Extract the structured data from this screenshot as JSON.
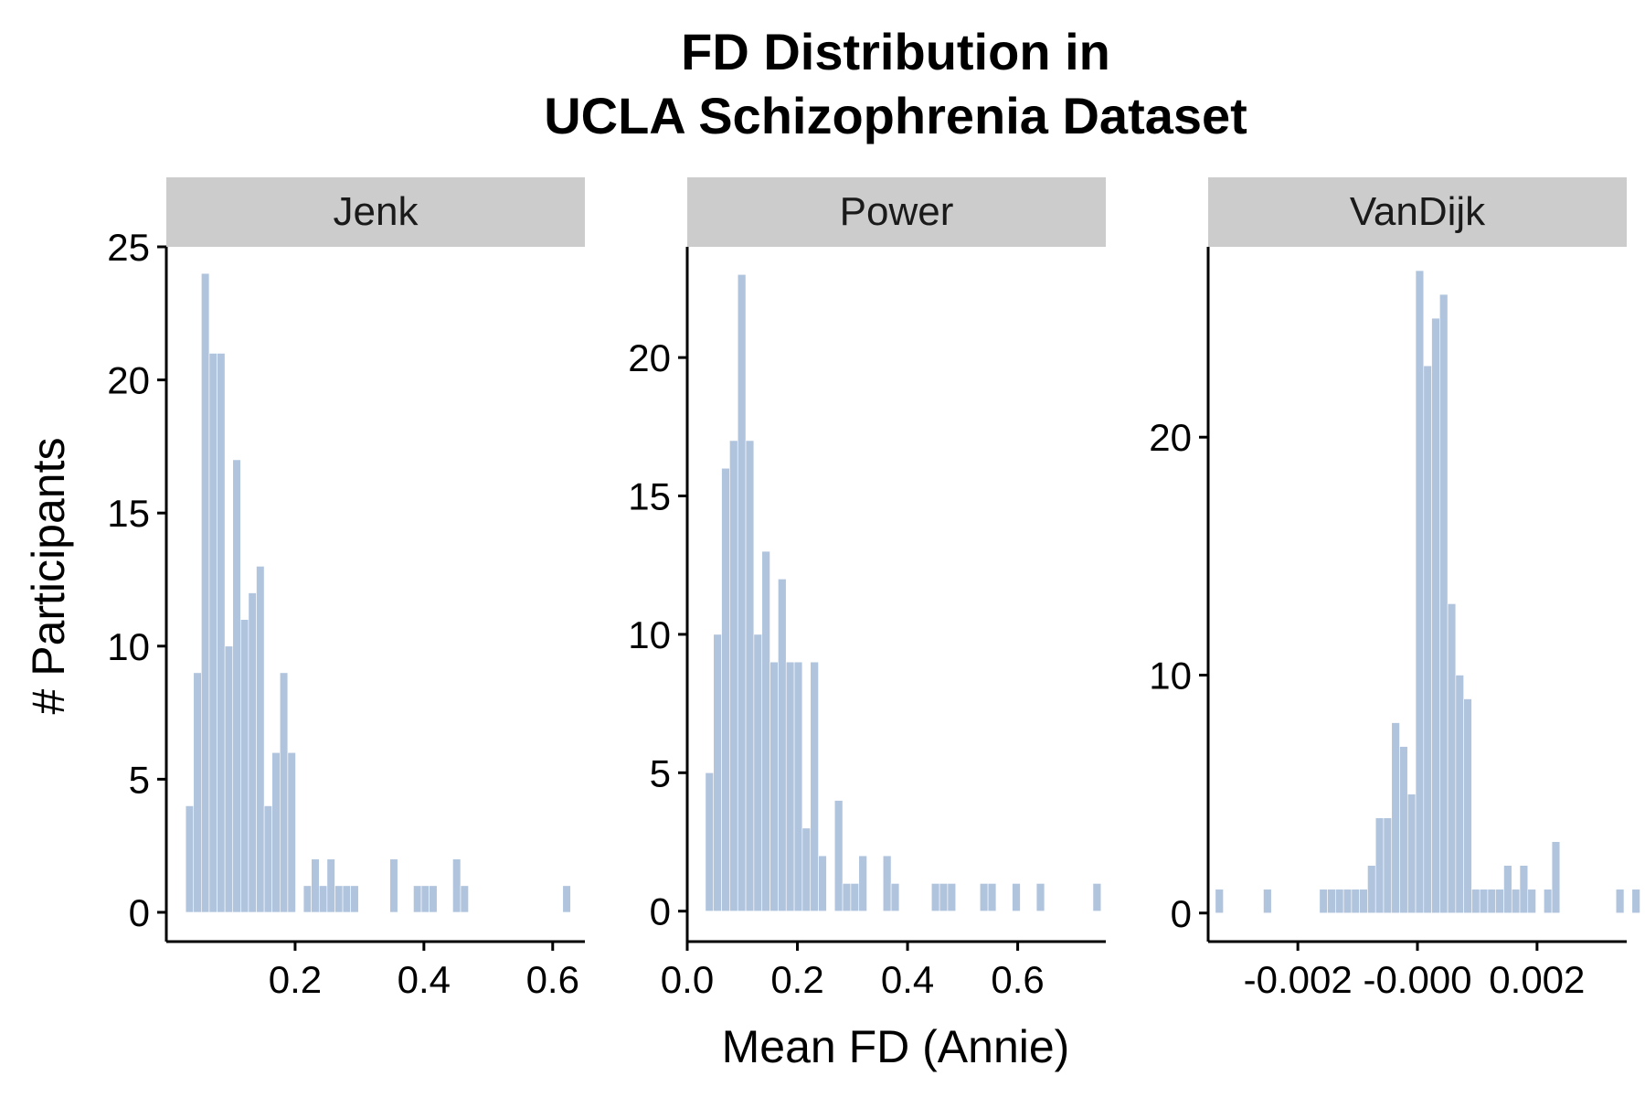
{
  "chart_data": {
    "type": "bar",
    "title_lines": [
      "FD Distribution in",
      "UCLA Schizophrenia Dataset"
    ],
    "xlabel": "Mean FD (Annie)",
    "ylabel": "# Participants",
    "bar_color": "#b0c4de",
    "strip_color": "#cccccc",
    "panels": [
      {
        "name": "Jenk",
        "xlim": [
          0.0,
          0.65
        ],
        "ylim": [
          -1.1,
          25.0
        ],
        "xticks": [
          0.2,
          0.4,
          0.6
        ],
        "xtick_labels": [
          "0.2",
          "0.4",
          "0.6"
        ],
        "yticks": [
          0,
          5,
          10,
          15,
          20,
          25
        ],
        "ytick_labels": [
          "0",
          "5",
          "10",
          "15",
          "20",
          "25"
        ],
        "bin_start": 0.03,
        "bin_width": 0.0122,
        "counts": [
          4,
          9,
          24,
          21,
          21,
          10,
          17,
          11,
          12,
          13,
          4,
          6,
          9,
          6,
          0,
          1,
          2,
          1,
          2,
          1,
          1,
          1,
          0,
          0,
          0,
          0,
          2,
          0,
          0,
          1,
          1,
          1,
          0,
          0,
          2,
          1,
          0,
          0,
          0,
          0,
          0,
          0,
          0,
          0,
          0,
          0,
          0,
          0,
          1
        ]
      },
      {
        "name": "Power",
        "xlim": [
          0.0,
          0.76
        ],
        "ylim": [
          -1.1,
          24.0
        ],
        "xticks": [
          0.0,
          0.2,
          0.4,
          0.6
        ],
        "xtick_labels": [
          "0.0",
          "0.2",
          "0.4",
          "0.6"
        ],
        "yticks": [
          0,
          5,
          10,
          15,
          20
        ],
        "ytick_labels": [
          "0",
          "5",
          "10",
          "15",
          "20"
        ],
        "bin_start": 0.033,
        "bin_width": 0.01466,
        "counts": [
          5,
          10,
          16,
          17,
          23,
          17,
          10,
          13,
          9,
          12,
          9,
          9,
          3,
          9,
          2,
          0,
          4,
          1,
          1,
          2,
          0,
          0,
          2,
          1,
          0,
          0,
          0,
          0,
          1,
          1,
          1,
          0,
          0,
          0,
          1,
          1,
          0,
          0,
          1,
          0,
          0,
          1,
          0,
          0,
          0,
          0,
          0,
          0,
          1
        ]
      },
      {
        "name": "VanDijk",
        "xlim": [
          -0.0035,
          0.0035
        ],
        "ylim": [
          -1.2,
          28.0
        ],
        "xticks": [
          -0.002,
          0.0,
          0.002
        ],
        "xtick_labels": [
          "-0.002",
          "-0.000",
          "0.002"
        ],
        "yticks": [
          0,
          10,
          20
        ],
        "ytick_labels": [
          "0",
          "10",
          "20"
        ],
        "bin_start": -0.00338,
        "bin_width": 0.000134,
        "counts": [
          1,
          0,
          0,
          0,
          0,
          0,
          1,
          0,
          0,
          0,
          0,
          0,
          0,
          1,
          1,
          1,
          1,
          1,
          1,
          2,
          4,
          4,
          8,
          7,
          5,
          27,
          23,
          25,
          26,
          13,
          10,
          9,
          1,
          1,
          1,
          1,
          2,
          1,
          2,
          1,
          0,
          1,
          3,
          0,
          0,
          0,
          0,
          0,
          0,
          0,
          1,
          0,
          1
        ]
      }
    ]
  }
}
